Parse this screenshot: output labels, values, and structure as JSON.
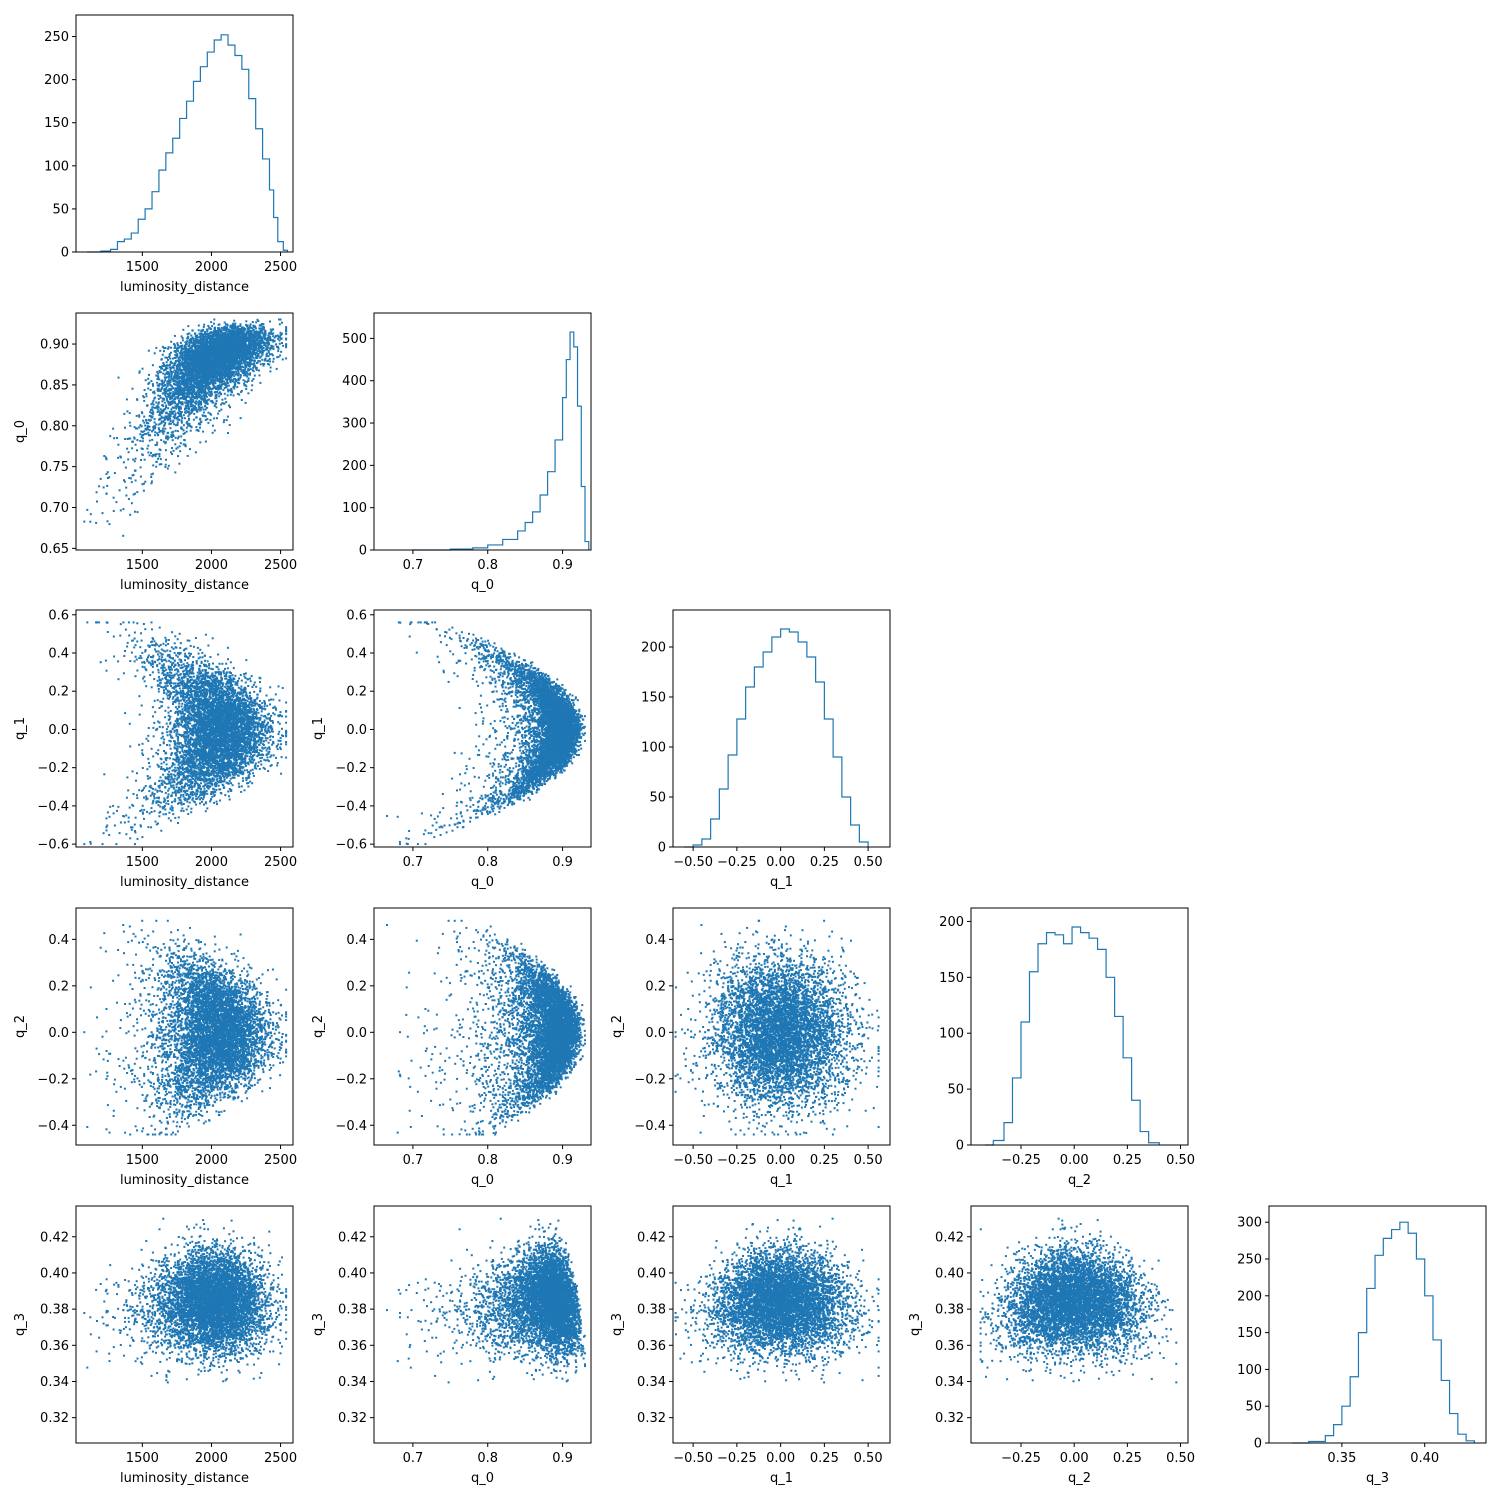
{
  "chart_data": {
    "type": "corner",
    "color": "#1f77b4",
    "variables": [
      {
        "name": "luminosity_distance",
        "range": [
          1020,
          2590
        ],
        "ticks": [
          1500,
          2000,
          2500
        ],
        "tick_labels": [
          "1500",
          "2000",
          "2500"
        ]
      },
      {
        "name": "q_0",
        "range": [
          0.648,
          0.938
        ],
        "ticks": [
          0.65,
          0.7,
          0.75,
          0.8,
          0.85,
          0.9
        ],
        "tick_labels": [
          "0.65",
          "0.70",
          "0.75",
          "0.80",
          "0.85",
          "0.90"
        ],
        "x_ticks": [
          0.7,
          0.8,
          0.9
        ],
        "x_tick_labels": [
          "0.7",
          "0.8",
          "0.9"
        ]
      },
      {
        "name": "q_1",
        "range": [
          -0.615,
          0.625
        ],
        "ticks": [
          -0.6,
          -0.4,
          -0.2,
          0.0,
          0.2,
          0.4,
          0.6
        ],
        "tick_labels": [
          "−0.6",
          "−0.4",
          "−0.2",
          "0.0",
          "0.2",
          "0.4",
          "0.6"
        ],
        "x_ticks": [
          -0.5,
          -0.25,
          0.0,
          0.25,
          0.5
        ],
        "x_tick_labels": [
          "−0.50",
          "−0.25",
          "0.00",
          "0.25",
          "0.50"
        ]
      },
      {
        "name": "q_2",
        "range": [
          -0.485,
          0.535
        ],
        "ticks": [
          -0.4,
          -0.2,
          0.0,
          0.2,
          0.4
        ],
        "tick_labels": [
          "−0.4",
          "−0.2",
          "0.0",
          "0.2",
          "0.4"
        ],
        "x_ticks": [
          -0.25,
          0.0,
          0.25,
          0.5
        ],
        "x_tick_labels": [
          "−0.25",
          "0.00",
          "0.25",
          "0.50"
        ]
      },
      {
        "name": "q_3",
        "range": [
          0.306,
          0.437
        ],
        "ticks": [
          0.32,
          0.34,
          0.36,
          0.38,
          0.4,
          0.42
        ],
        "tick_labels": [
          "0.32",
          "0.34",
          "0.36",
          "0.38",
          "0.40",
          "0.42"
        ],
        "x_ticks": [
          0.35,
          0.4
        ],
        "x_tick_labels": [
          "0.35",
          "0.40"
        ]
      }
    ],
    "histograms": [
      {
        "variable": "luminosity_distance",
        "ymax": 275,
        "yticks": [
          0,
          50,
          100,
          150,
          200,
          250
        ],
        "bins": [
          [
            1100,
            0
          ],
          [
            1200,
            1
          ],
          [
            1270,
            3
          ],
          [
            1320,
            12
          ],
          [
            1370,
            15
          ],
          [
            1420,
            22
          ],
          [
            1470,
            38
          ],
          [
            1520,
            50
          ],
          [
            1570,
            70
          ],
          [
            1620,
            95
          ],
          [
            1670,
            115
          ],
          [
            1720,
            132
          ],
          [
            1770,
            155
          ],
          [
            1820,
            175
          ],
          [
            1870,
            198
          ],
          [
            1920,
            215
          ],
          [
            1970,
            232
          ],
          [
            2020,
            246
          ],
          [
            2070,
            252
          ],
          [
            2120,
            240
          ],
          [
            2170,
            228
          ],
          [
            2220,
            212
          ],
          [
            2270,
            178
          ],
          [
            2320,
            143
          ],
          [
            2370,
            108
          ],
          [
            2420,
            72
          ],
          [
            2450,
            40
          ],
          [
            2480,
            12
          ],
          [
            2520,
            2
          ],
          [
            2550,
            0
          ]
        ]
      },
      {
        "variable": "q_0",
        "ymax": 560,
        "yticks": [
          0,
          100,
          200,
          300,
          400,
          500
        ],
        "bins": [
          [
            0.7,
            0
          ],
          [
            0.75,
            2
          ],
          [
            0.78,
            5
          ],
          [
            0.8,
            12
          ],
          [
            0.82,
            25
          ],
          [
            0.84,
            45
          ],
          [
            0.85,
            65
          ],
          [
            0.86,
            90
          ],
          [
            0.87,
            130
          ],
          [
            0.88,
            185
          ],
          [
            0.89,
            260
          ],
          [
            0.9,
            360
          ],
          [
            0.905,
            450
          ],
          [
            0.91,
            515
          ],
          [
            0.915,
            480
          ],
          [
            0.92,
            340
          ],
          [
            0.925,
            150
          ],
          [
            0.93,
            20
          ],
          [
            0.935,
            0
          ]
        ]
      },
      {
        "variable": "q_1",
        "ymax": 237,
        "yticks": [
          0,
          50,
          100,
          150,
          200
        ],
        "bins": [
          [
            -0.55,
            0
          ],
          [
            -0.5,
            2
          ],
          [
            -0.45,
            8
          ],
          [
            -0.4,
            28
          ],
          [
            -0.35,
            58
          ],
          [
            -0.3,
            92
          ],
          [
            -0.25,
            128
          ],
          [
            -0.2,
            160
          ],
          [
            -0.15,
            180
          ],
          [
            -0.1,
            195
          ],
          [
            -0.05,
            210
          ],
          [
            0.0,
            218
          ],
          [
            0.05,
            215
          ],
          [
            0.1,
            205
          ],
          [
            0.15,
            190
          ],
          [
            0.2,
            165
          ],
          [
            0.25,
            128
          ],
          [
            0.3,
            90
          ],
          [
            0.35,
            50
          ],
          [
            0.4,
            22
          ],
          [
            0.45,
            5
          ],
          [
            0.5,
            0
          ]
        ]
      },
      {
        "variable": "q_2",
        "ymax": 212,
        "yticks": [
          0,
          50,
          100,
          150,
          200
        ],
        "bins": [
          [
            -0.42,
            0
          ],
          [
            -0.38,
            4
          ],
          [
            -0.33,
            20
          ],
          [
            -0.29,
            60
          ],
          [
            -0.25,
            110
          ],
          [
            -0.21,
            155
          ],
          [
            -0.17,
            180
          ],
          [
            -0.13,
            190
          ],
          [
            -0.09,
            188
          ],
          [
            -0.05,
            180
          ],
          [
            -0.01,
            195
          ],
          [
            0.03,
            190
          ],
          [
            0.07,
            185
          ],
          [
            0.11,
            175
          ],
          [
            0.15,
            150
          ],
          [
            0.19,
            115
          ],
          [
            0.23,
            78
          ],
          [
            0.27,
            40
          ],
          [
            0.31,
            12
          ],
          [
            0.35,
            2
          ],
          [
            0.4,
            0
          ]
        ]
      },
      {
        "variable": "q_3",
        "ymax": 322,
        "yticks": [
          0,
          50,
          100,
          150,
          200,
          250,
          300
        ],
        "bins": [
          [
            0.32,
            0
          ],
          [
            0.33,
            2
          ],
          [
            0.34,
            10
          ],
          [
            0.345,
            25
          ],
          [
            0.35,
            50
          ],
          [
            0.355,
            90
          ],
          [
            0.36,
            150
          ],
          [
            0.365,
            210
          ],
          [
            0.37,
            255
          ],
          [
            0.375,
            278
          ],
          [
            0.38,
            290
          ],
          [
            0.385,
            300
          ],
          [
            0.39,
            285
          ],
          [
            0.395,
            250
          ],
          [
            0.4,
            200
          ],
          [
            0.405,
            140
          ],
          [
            0.41,
            85
          ],
          [
            0.415,
            40
          ],
          [
            0.42,
            12
          ],
          [
            0.425,
            3
          ],
          [
            0.43,
            0
          ]
        ]
      }
    ],
    "scatter": {
      "n_points": 6000,
      "marker_size": 1,
      "pairs": [
        {
          "x": "luminosity_distance",
          "y": "q_0"
        },
        {
          "x": "luminosity_distance",
          "y": "q_1"
        },
        {
          "x": "q_0",
          "y": "q_1"
        },
        {
          "x": "luminosity_distance",
          "y": "q_2"
        },
        {
          "x": "q_0",
          "y": "q_2"
        },
        {
          "x": "q_1",
          "y": "q_2"
        },
        {
          "x": "luminosity_distance",
          "y": "q_3"
        },
        {
          "x": "q_0",
          "y": "q_3"
        },
        {
          "x": "q_1",
          "y": "q_3"
        },
        {
          "x": "q_2",
          "y": "q_3"
        }
      ]
    }
  }
}
